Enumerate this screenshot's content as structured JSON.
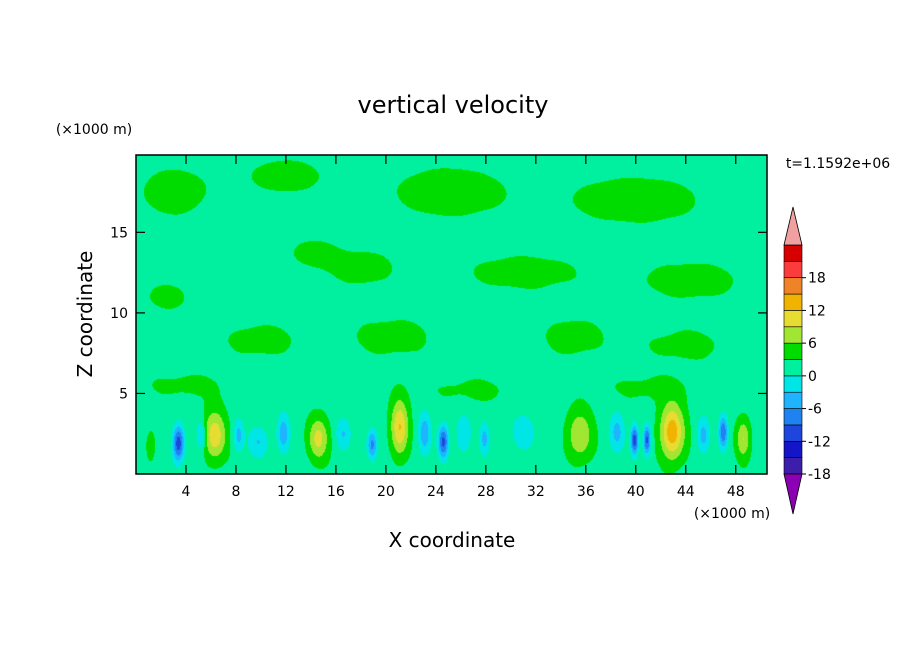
{
  "chart_data": {
    "type": "heatmap",
    "title": "vertical velocity",
    "xlabel": "X coordinate",
    "ylabel": "Z coordinate",
    "x_unit": "(×1000 m)",
    "y_unit": "(×1000 m)",
    "time_label": "t=1.1592e+06",
    "xlim": [
      0,
      50.5
    ],
    "ylim": [
      0,
      19.8
    ],
    "x_ticks": [
      4,
      8,
      12,
      16,
      20,
      24,
      28,
      32,
      36,
      40,
      44,
      48
    ],
    "y_ticks": [
      5,
      10,
      15
    ],
    "background_value": -1,
    "blobs": [
      {
        "x": 1.2,
        "z": 1.8,
        "w": 0.35,
        "d": 0.9,
        "v": 3
      },
      {
        "x": 3.4,
        "z": 1.9,
        "w": 0.45,
        "d": 1.1,
        "v": -13
      },
      {
        "x": 5.2,
        "z": 2.4,
        "w": 0.35,
        "d": 1.0,
        "v": -6
      },
      {
        "x": 6.3,
        "z": 2.4,
        "w": 0.9,
        "d": 1.5,
        "v": 9
      },
      {
        "x": 8.2,
        "z": 2.4,
        "w": 0.4,
        "d": 1.0,
        "v": -6
      },
      {
        "x": 9.8,
        "z": 2.0,
        "w": 0.8,
        "d": 1.0,
        "v": -5
      },
      {
        "x": 11.8,
        "z": 2.5,
        "w": 0.5,
        "d": 1.2,
        "v": -7
      },
      {
        "x": 14.6,
        "z": 2.2,
        "w": 0.8,
        "d": 1.3,
        "v": 8
      },
      {
        "x": 16.6,
        "z": 2.5,
        "w": 0.6,
        "d": 1.0,
        "v": -5
      },
      {
        "x": 18.9,
        "z": 1.8,
        "w": 0.4,
        "d": 0.9,
        "v": -9
      },
      {
        "x": 21.1,
        "z": 2.9,
        "w": 0.7,
        "d": 1.7,
        "v": 10
      },
      {
        "x": 23.1,
        "z": 2.5,
        "w": 0.5,
        "d": 1.3,
        "v": -7
      },
      {
        "x": 24.6,
        "z": 2.0,
        "w": 0.4,
        "d": 1.0,
        "v": -12
      },
      {
        "x": 26.2,
        "z": 2.5,
        "w": 0.6,
        "d": 1.2,
        "v": -5
      },
      {
        "x": 27.9,
        "z": 2.2,
        "w": 0.4,
        "d": 1.0,
        "v": -6
      },
      {
        "x": 31.0,
        "z": 2.6,
        "w": 1.0,
        "d": 1.2,
        "v": -4
      },
      {
        "x": 35.5,
        "z": 2.4,
        "w": 1.0,
        "d": 1.5,
        "v": 7
      },
      {
        "x": 38.5,
        "z": 2.6,
        "w": 0.6,
        "d": 1.2,
        "v": -6
      },
      {
        "x": 39.9,
        "z": 2.1,
        "w": 0.3,
        "d": 0.9,
        "v": -13
      },
      {
        "x": 40.9,
        "z": 2.1,
        "w": 0.3,
        "d": 0.9,
        "v": -12
      },
      {
        "x": 42.9,
        "z": 2.6,
        "w": 0.95,
        "d": 1.7,
        "v": 12
      },
      {
        "x": 45.4,
        "z": 2.4,
        "w": 0.5,
        "d": 1.1,
        "v": -6
      },
      {
        "x": 47.0,
        "z": 2.6,
        "w": 0.35,
        "d": 1.0,
        "v": -11
      },
      {
        "x": 48.6,
        "z": 2.2,
        "w": 0.55,
        "d": 1.2,
        "v": 7
      },
      {
        "x": 3.0,
        "z": 17.5,
        "w": 3.5,
        "d": 2.0,
        "v": 1.6
      },
      {
        "x": 12.0,
        "z": 18.5,
        "w": 4.0,
        "d": 1.5,
        "v": 1.5
      },
      {
        "x": 25.0,
        "z": 17.5,
        "w": 5.5,
        "d": 2.0,
        "v": 1.7
      },
      {
        "x": 40.0,
        "z": 17.0,
        "w": 7.0,
        "d": 2.0,
        "v": 1.6
      },
      {
        "x": 18.0,
        "z": 12.8,
        "w": 3.5,
        "d": 1.5,
        "v": 1.5
      },
      {
        "x": 31.0,
        "z": 12.5,
        "w": 6.0,
        "d": 1.5,
        "v": 1.5
      },
      {
        "x": 44.5,
        "z": 12.0,
        "w": 5.0,
        "d": 1.5,
        "v": 1.6
      },
      {
        "x": 2.5,
        "z": 11.0,
        "w": 2.5,
        "d": 1.2,
        "v": 1.4
      },
      {
        "x": 10.0,
        "z": 8.3,
        "w": 3.5,
        "d": 1.3,
        "v": 1.6
      },
      {
        "x": 20.5,
        "z": 8.5,
        "w": 4.0,
        "d": 1.5,
        "v": 1.6
      },
      {
        "x": 35.0,
        "z": 8.5,
        "w": 3.0,
        "d": 1.5,
        "v": 1.6
      },
      {
        "x": 44.0,
        "z": 8.0,
        "w": 4.0,
        "d": 1.3,
        "v": 1.5
      },
      {
        "x": 4.0,
        "z": 5.5,
        "w": 4.0,
        "d": 1.0,
        "v": 1.4
      },
      {
        "x": 27.0,
        "z": 5.2,
        "w": 4.0,
        "d": 1.0,
        "v": 1.4
      },
      {
        "x": 41.0,
        "z": 5.3,
        "w": 4.0,
        "d": 1.0,
        "v": 1.4
      },
      {
        "x": 14.0,
        "z": 13.8,
        "w": 2.0,
        "d": 1.0,
        "v": 1.4
      }
    ]
  },
  "colorbar": {
    "tick_labels": [
      "18",
      "12",
      "6",
      "0",
      "-6",
      "-12",
      "-18"
    ],
    "levels": [
      -21,
      -18,
      -15,
      -12,
      -9,
      -6,
      -3,
      0,
      3,
      6,
      9,
      12,
      15,
      18,
      21
    ],
    "colors": [
      "#8c00b4",
      "#3c1eaa",
      "#1414c8",
      "#1e46dc",
      "#1e82f0",
      "#1eb4ff",
      "#00e6e6",
      "#00f0a0",
      "#00dc00",
      "#a0e632",
      "#e6dc32",
      "#f0b400",
      "#f08228",
      "#fa3c3c",
      "#d70000",
      "#f0a0a0"
    ],
    "under_color": "#8c00b4",
    "over_color": "#f0a0a0"
  }
}
